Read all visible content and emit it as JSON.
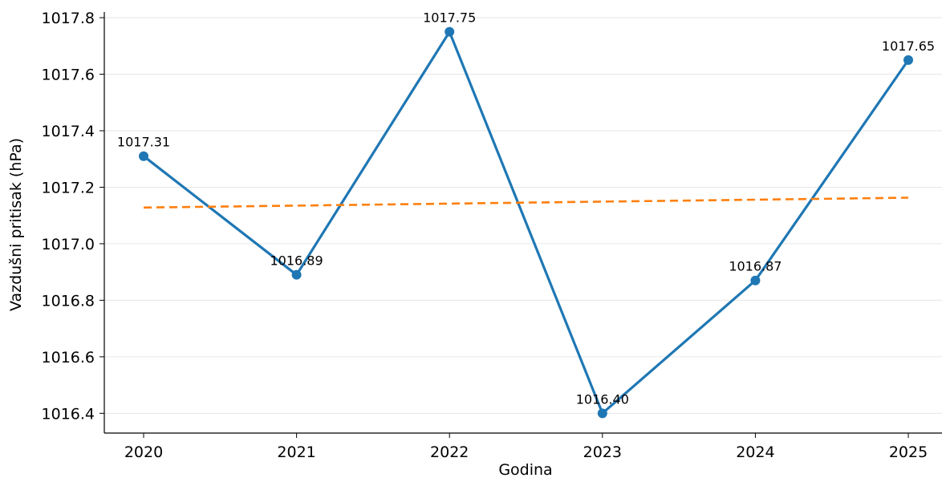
{
  "chart_data": {
    "type": "line",
    "title": "",
    "xlabel": "Godina",
    "ylabel": "Vazdušni pritisak (hPa)",
    "x": [
      "2020",
      "2021",
      "2022",
      "2023",
      "2024",
      "2025"
    ],
    "series": [
      {
        "values": [
          1017.31,
          1016.89,
          1017.75,
          1016.4,
          1016.87,
          1017.65
        ],
        "data_labels": [
          "1017.31",
          "1016.89",
          "1017.75",
          "1016.40",
          "1016.87",
          "1017.65"
        ],
        "color": "#1f77b4",
        "style": "solid",
        "markers": true
      },
      {
        "values": [
          1017.128,
          1017.135,
          1017.142,
          1017.149,
          1017.156,
          1017.163
        ],
        "color": "#ff7f0e",
        "style": "dashed",
        "markers": false
      }
    ],
    "ylim": [
      1016.33,
      1017.82
    ],
    "yticks": [
      1016.4,
      1016.6,
      1016.8,
      1017.0,
      1017.2,
      1017.4,
      1017.6,
      1017.8
    ],
    "ytick_labels": [
      "1016.4",
      "1016.6",
      "1016.8",
      "1017.0",
      "1017.2",
      "1017.4",
      "1017.6",
      "1017.8"
    ],
    "grid": "horizontal",
    "legend": "none"
  }
}
